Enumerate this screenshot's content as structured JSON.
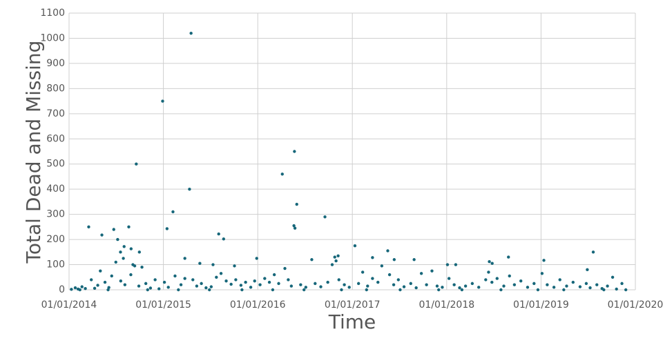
{
  "chart_data": {
    "type": "scatter",
    "xlabel": "Time",
    "ylabel": "Total Dead and Missing",
    "color": "#17677a",
    "grid": true,
    "xlim": [
      "2014-01-01",
      "2020-01-01"
    ],
    "xticks": [
      {
        "value": "2014-01-01",
        "label": "01/01/2014"
      },
      {
        "value": "2015-01-01",
        "label": "01/01/2015"
      },
      {
        "value": "2016-01-01",
        "label": "01/01/2016"
      },
      {
        "value": "2017-01-01",
        "label": "01/01/2017"
      },
      {
        "value": "2018-01-01",
        "label": "01/01/2018"
      },
      {
        "value": "2019-01-01",
        "label": "01/01/2019"
      },
      {
        "value": "2020-01-01",
        "label": "01/01/2020"
      }
    ],
    "ylim": [
      0,
      1100
    ],
    "yticks": [
      0,
      100,
      200,
      300,
      400,
      500,
      600,
      700,
      800,
      900,
      1000,
      1100
    ],
    "x": [
      "2015-04-18",
      "2014-12-29",
      "2014-09-18",
      "2015-04-12",
      "2016-05-22",
      "2016-04-05",
      "2016-05-31",
      "2016-09-17",
      "2016-05-20",
      "2016-05-24",
      "2015-02-07",
      "2014-03-18",
      "2014-08-20",
      "2014-06-23",
      "2015-01-15",
      "2014-05-08",
      "2015-08-03",
      "2015-08-22",
      "2014-07-08",
      "2014-08-02",
      "2014-08-29",
      "2014-09-30",
      "2014-07-19",
      "2014-07-30",
      "2017-01-11",
      "2017-05-18",
      "2015-12-28",
      "2016-07-28",
      "2015-03-25",
      "2017-08-28",
      "2017-06-12",
      "2017-03-20",
      "2016-11-07",
      "2016-10-30",
      "2018-08-28",
      "2019-01-12",
      "2018-06-15",
      "2018-06-26",
      "2018-01-04",
      "2018-02-05",
      "2015-05-22",
      "2015-07-12",
      "2015-10-03",
      "2014-09-12",
      "2019-06-29",
      "2019-07-22",
      "2014-01-10",
      "2014-01-25",
      "2014-02-05",
      "2014-02-20",
      "2014-03-05",
      "2014-03-28",
      "2014-04-10",
      "2014-04-22",
      "2014-05-02",
      "2014-05-20",
      "2014-06-04",
      "2014-06-15",
      "2014-07-01",
      "2014-07-20",
      "2014-08-05",
      "2014-08-28",
      "2014-09-05",
      "2014-09-28",
      "2014-10-10",
      "2014-10-25",
      "2014-11-12",
      "2014-11-30",
      "2014-12-15",
      "2015-01-05",
      "2015-01-20",
      "2015-02-15",
      "2015-03-10",
      "2015-03-25",
      "2015-04-25",
      "2015-05-10",
      "2015-05-28",
      "2015-06-15",
      "2015-07-05",
      "2015-07-25",
      "2015-08-12",
      "2015-09-01",
      "2015-09-20",
      "2015-10-08",
      "2015-10-28",
      "2015-11-15",
      "2015-12-05",
      "2015-12-20",
      "2016-01-10",
      "2016-01-28",
      "2016-02-15",
      "2016-03-05",
      "2016-03-22",
      "2016-04-15",
      "2016-04-28",
      "2016-05-10",
      "2016-06-15",
      "2016-07-05",
      "2016-08-10",
      "2016-09-01",
      "2016-09-28",
      "2016-10-15",
      "2016-10-25",
      "2016-11-10",
      "2016-12-01",
      "2016-12-20",
      "2017-01-25",
      "2017-02-10",
      "2017-03-01",
      "2017-03-20",
      "2017-04-10",
      "2017-04-25",
      "2017-05-25",
      "2017-06-10",
      "2017-06-28",
      "2017-07-20",
      "2017-08-15",
      "2017-09-05",
      "2017-09-25",
      "2017-10-15",
      "2017-11-05",
      "2017-11-25",
      "2017-12-15",
      "2018-01-10",
      "2018-01-30",
      "2018-02-20",
      "2018-03-15",
      "2018-04-10",
      "2018-05-05",
      "2018-06-01",
      "2018-06-12",
      "2018-06-25",
      "2018-07-15",
      "2018-08-10",
      "2018-09-01",
      "2018-09-20",
      "2018-10-15",
      "2018-11-10",
      "2018-12-05",
      "2019-01-05",
      "2019-01-25",
      "2019-02-20",
      "2019-03-15",
      "2019-04-10",
      "2019-05-05",
      "2019-06-01",
      "2019-06-25",
      "2019-07-10",
      "2019-08-05",
      "2019-08-25",
      "2019-09-15",
      "2019-10-05",
      "2019-10-20",
      "2019-11-10",
      "2014-02-12",
      "2014-06-01",
      "2014-11-01",
      "2015-02-28",
      "2015-06-28",
      "2015-11-01",
      "2016-02-28",
      "2016-06-28",
      "2016-11-20",
      "2017-02-25",
      "2017-07-05",
      "2017-12-01",
      "2018-03-01",
      "2018-07-30",
      "2018-12-20",
      "2019-03-30",
      "2019-09-01",
      "2019-11-25"
    ],
    "values": [
      1020,
      750,
      500,
      400,
      550,
      460,
      340,
      290,
      255,
      245,
      310,
      250,
      250,
      240,
      243,
      218,
      222,
      202,
      200,
      172,
      163,
      150,
      150,
      125,
      175,
      155,
      125,
      120,
      125,
      120,
      120,
      128,
      135,
      115,
      130,
      117,
      112,
      105,
      100,
      100,
      105,
      100,
      95,
      95,
      80,
      150,
      2,
      8,
      3,
      12,
      5,
      40,
      6,
      18,
      75,
      30,
      9,
      55,
      110,
      35,
      20,
      60,
      100,
      15,
      90,
      25,
      7,
      40,
      4,
      30,
      10,
      55,
      20,
      45,
      40,
      15,
      25,
      8,
      12,
      50,
      65,
      35,
      22,
      40,
      18,
      30,
      10,
      35,
      20,
      45,
      30,
      60,
      25,
      85,
      40,
      15,
      20,
      10,
      25,
      12,
      30,
      100,
      130,
      40,
      20,
      10,
      25,
      70,
      15,
      45,
      30,
      95,
      60,
      20,
      40,
      12,
      25,
      8,
      65,
      20,
      75,
      15,
      10,
      45,
      20,
      8,
      15,
      25,
      10,
      40,
      70,
      30,
      45,
      15,
      55,
      20,
      35,
      10,
      25,
      65,
      20,
      10,
      40,
      15,
      30,
      12,
      25,
      8,
      20,
      5,
      15,
      50,
      3,
      25,
      0,
      0,
      0,
      0,
      0,
      0,
      0,
      0,
      0,
      0,
      0,
      0,
      0,
      0,
      0,
      0,
      0,
      0
    ]
  }
}
